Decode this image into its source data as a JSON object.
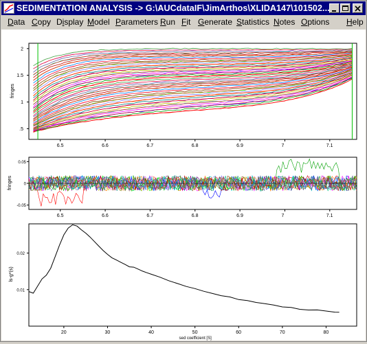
{
  "window": {
    "title": "SEDIMENTATION ANALYSIS -> G:\\AUCdataIF\\JimArthos\\XLIDA147\\101502..."
  },
  "menu": [
    {
      "label": "Data",
      "u": "D"
    },
    {
      "label": "Copy",
      "u": "C"
    },
    {
      "label": "Display",
      "u": "i"
    },
    {
      "label": "Model",
      "u": "M"
    },
    {
      "label": "Parameters",
      "u": "P"
    },
    {
      "label": "Run",
      "u": "R"
    },
    {
      "label": "Fit",
      "u": "F"
    },
    {
      "label": "Generate",
      "u": "G"
    },
    {
      "label": "Statistics",
      "u": "S"
    },
    {
      "label": "Notes",
      "u": "N"
    },
    {
      "label": "Options",
      "u": "O"
    },
    {
      "label": "Help",
      "u": "H"
    }
  ],
  "colors": {
    "title_bg": "#000080",
    "window_bg": "#d4d0c8",
    "boundary_green": "#00c000",
    "fit_red": "#ff0000",
    "distribution_line": "#000000"
  },
  "chart_data": [
    {
      "type": "line",
      "name": "sedimentation-data",
      "ylabel": "fringes",
      "x_ticks": [
        6.5,
        6.6,
        6.7,
        6.8,
        6.9,
        7.0,
        7.1
      ],
      "x_tick_labels": [
        "6.5",
        "6.6",
        "6.7",
        "6.8",
        "6.9",
        "7",
        "7.1"
      ],
      "y_ticks": [
        0.5,
        1,
        1.5,
        2
      ],
      "y_tick_labels": [
        ".5",
        "1",
        "1.5",
        "2"
      ],
      "xlim": [
        6.43,
        7.16
      ],
      "ylim": [
        0.3,
        2.1
      ],
      "scan_count": 40,
      "meniscus_x": 6.45,
      "bottom_x": 7.15,
      "description": "boundary scans rising across cell radius with fit lines"
    },
    {
      "type": "line",
      "name": "residuals",
      "ylabel": "fringes",
      "x_ticks": [
        6.5,
        6.6,
        6.7,
        6.8,
        6.9,
        7.0,
        7.1
      ],
      "x_tick_labels": [
        "6.5",
        "6.6",
        "6.7",
        "6.8",
        "6.9",
        "7",
        "7.1"
      ],
      "y_ticks": [
        -0.05,
        0,
        0.05
      ],
      "y_tick_labels": [
        "-0.05",
        "0",
        "0.05"
      ],
      "xlim": [
        6.43,
        7.16
      ],
      "ylim": [
        -0.06,
        0.06
      ],
      "description": "residual noise band around zero"
    },
    {
      "type": "line",
      "name": "sedimentation-coefficient-distribution",
      "title": "",
      "xlabel": "sed coefficient [S]",
      "ylabel": "ls-g*(s)",
      "x_ticks": [
        20,
        30,
        40,
        50,
        60,
        70,
        80
      ],
      "x_tick_labels": [
        "20",
        "30",
        "40",
        "50",
        "60",
        "70",
        "80"
      ],
      "y_ticks": [
        0.01,
        0.02
      ],
      "y_tick_labels": [
        "0.01",
        "0.02"
      ],
      "xlim": [
        12,
        87
      ],
      "ylim": [
        0,
        0.028
      ],
      "series": [
        {
          "name": "ls-g*(s)",
          "x": [
            12,
            13,
            14,
            15,
            16,
            17,
            18,
            19,
            20,
            21,
            22,
            23,
            24,
            25,
            26,
            27,
            28,
            29,
            30,
            31,
            32,
            33,
            34,
            35,
            36,
            37,
            38,
            39,
            40,
            42,
            44,
            46,
            48,
            50,
            52,
            54,
            56,
            58,
            60,
            62,
            64,
            66,
            68,
            70,
            72,
            74,
            76,
            78,
            80,
            82,
            83
          ],
          "y": [
            0.0095,
            0.009,
            0.011,
            0.013,
            0.014,
            0.016,
            0.019,
            0.022,
            0.025,
            0.0268,
            0.0278,
            0.0275,
            0.0265,
            0.0255,
            0.0245,
            0.0232,
            0.0218,
            0.0206,
            0.0196,
            0.0188,
            0.0181,
            0.0174,
            0.0168,
            0.0163,
            0.016,
            0.0156,
            0.0152,
            0.0147,
            0.0142,
            0.0133,
            0.0124,
            0.0116,
            0.0109,
            0.0102,
            0.0096,
            0.009,
            0.0084,
            0.0079,
            0.0074,
            0.007,
            0.0066,
            0.0062,
            0.0058,
            0.0054,
            0.005,
            0.0047,
            0.0045,
            0.0043,
            0.0041,
            0.0039,
            0.0038
          ]
        }
      ]
    }
  ]
}
